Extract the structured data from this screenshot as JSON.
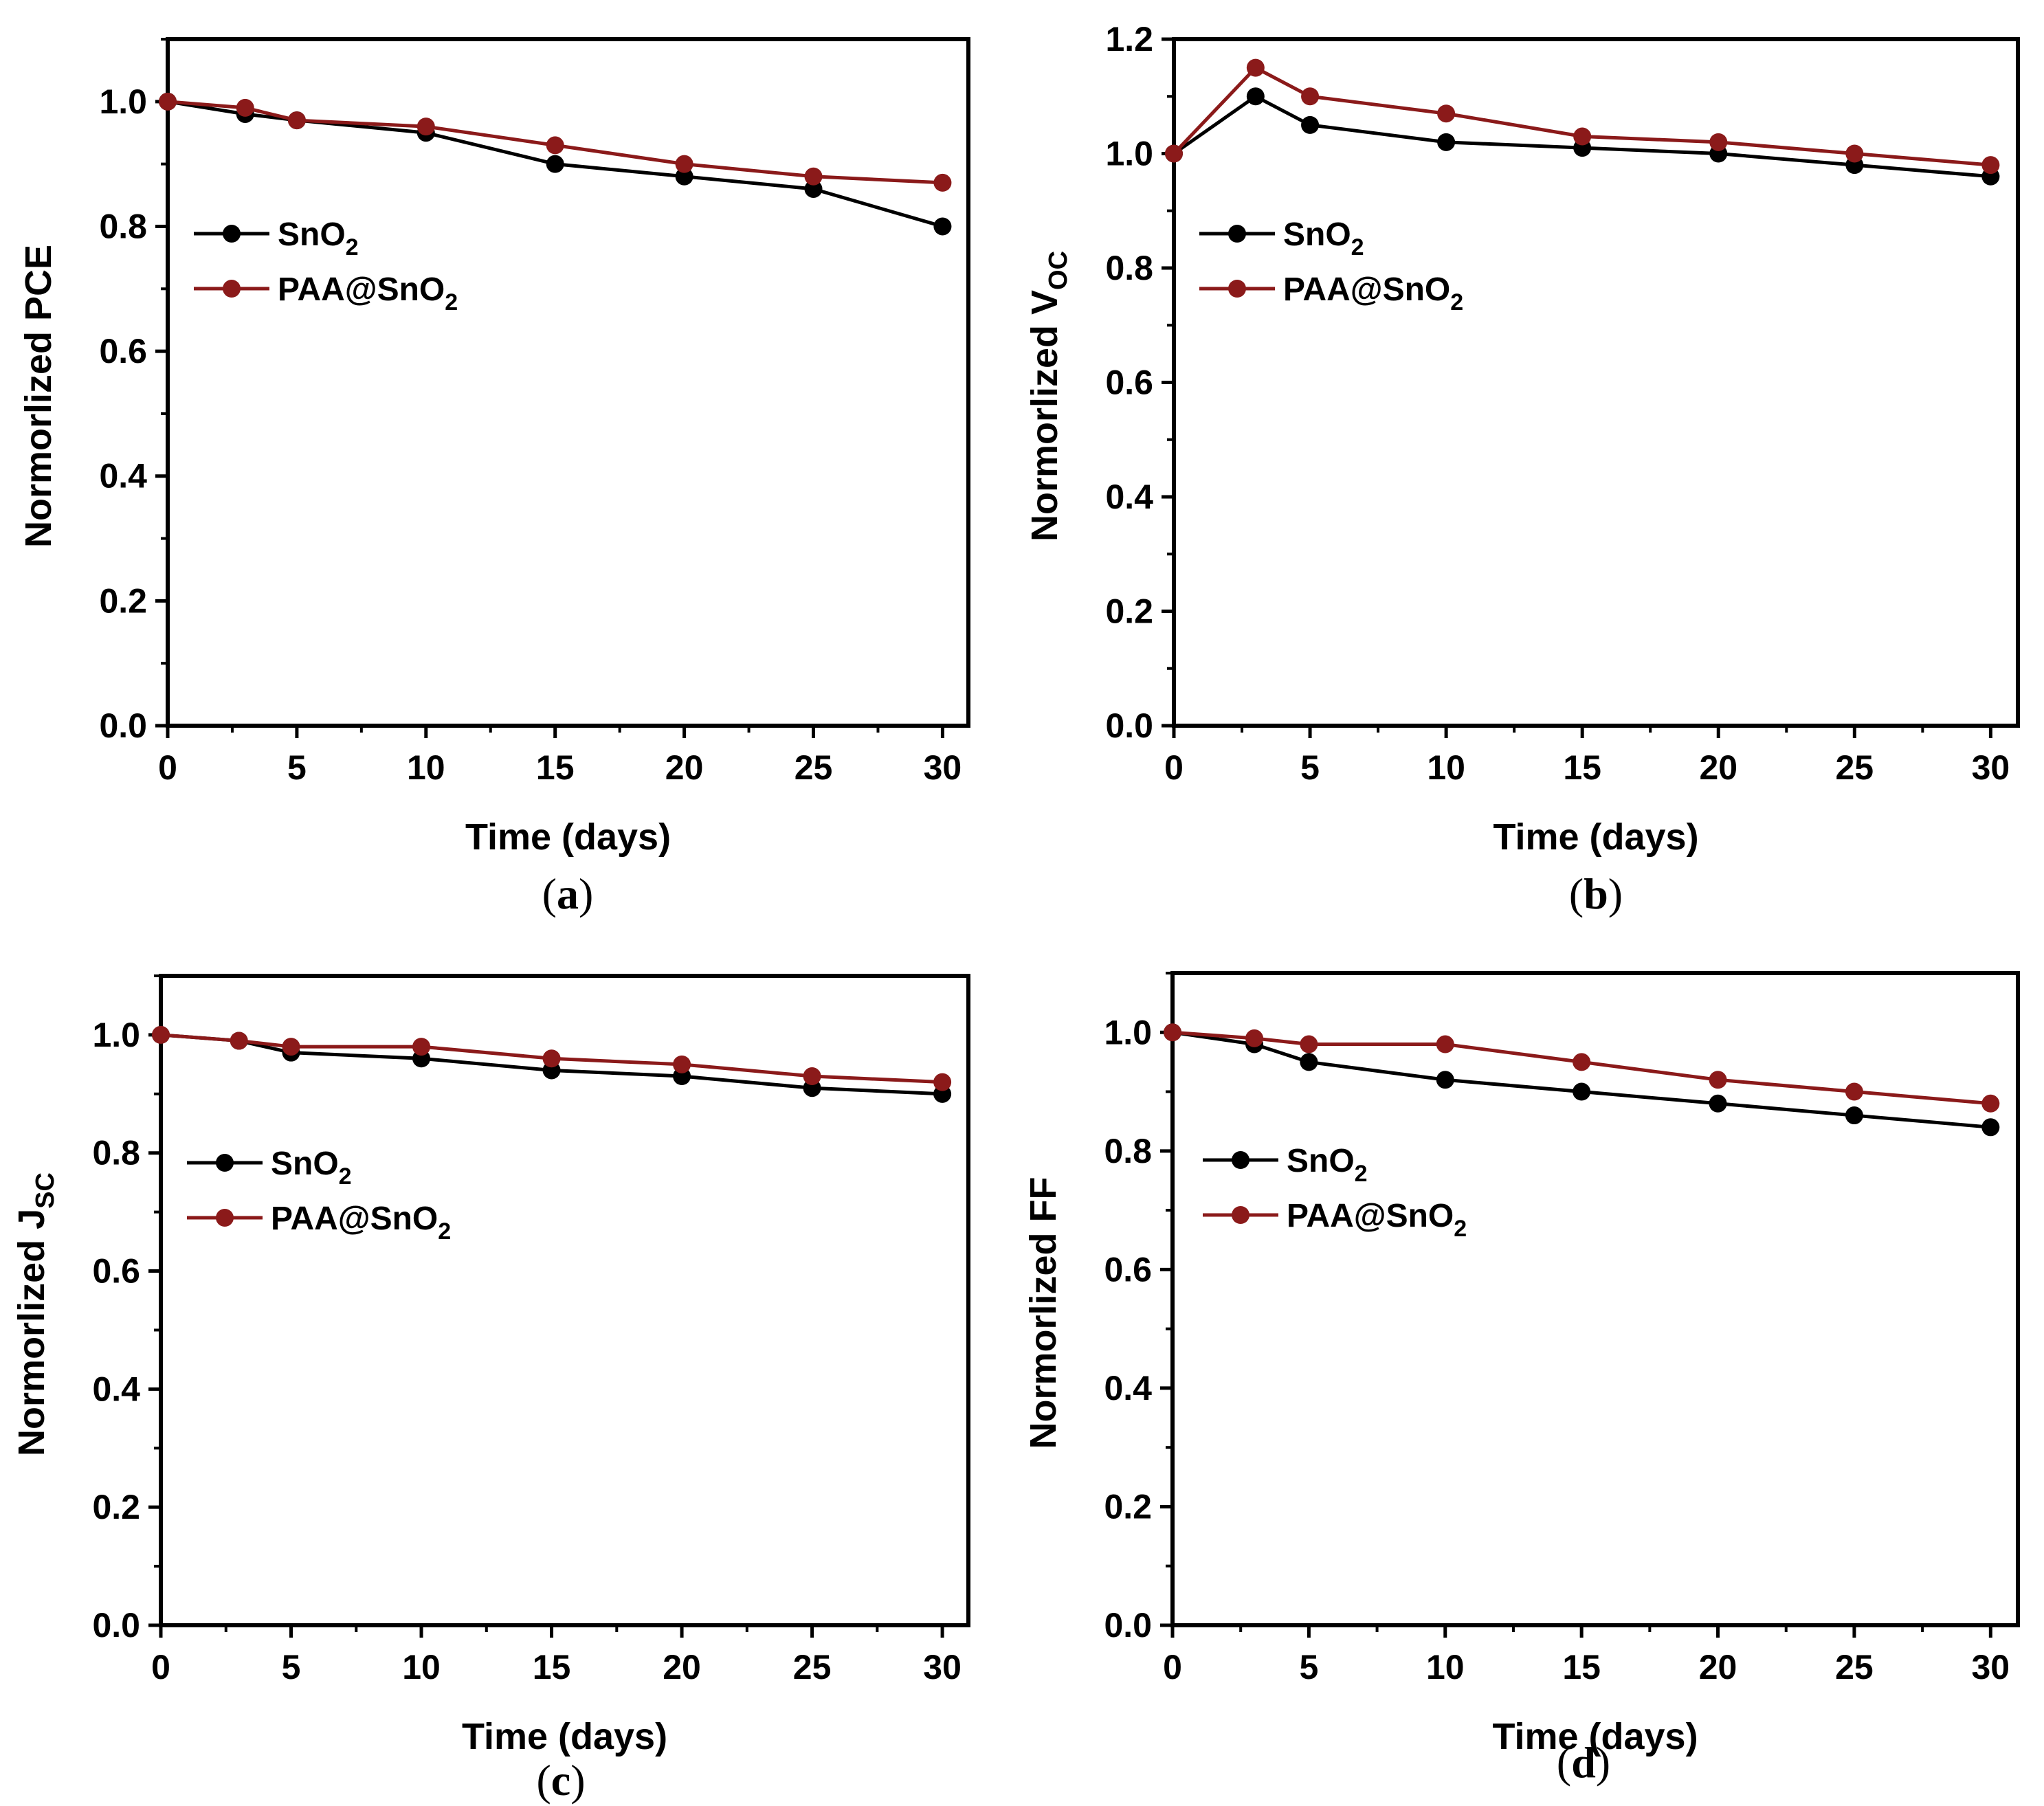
{
  "chart_data": [
    {
      "panel": "a",
      "type": "line",
      "xlabel": "Time (days)",
      "ylabel": {
        "base": "Normorlized PCE",
        "sub": ""
      },
      "xlim": [
        0,
        31
      ],
      "ylim": [
        0,
        1.1
      ],
      "xticks": [
        "0",
        "5",
        "10",
        "15",
        "20",
        "25",
        "30"
      ],
      "yticks": [
        "0.0",
        "0.2",
        "0.4",
        "0.6",
        "0.8",
        "1.0"
      ],
      "x": [
        0,
        3,
        5,
        10,
        15,
        20,
        25,
        30
      ],
      "series": [
        {
          "name": "SnO2",
          "label": {
            "base": "SnO",
            "sub": "2"
          },
          "color": "#000000",
          "values": [
            1.0,
            0.98,
            0.97,
            0.95,
            0.9,
            0.88,
            0.86,
            0.8
          ]
        },
        {
          "name": "PAA@SnO2",
          "label": {
            "base": "PAA@SnO",
            "sub": "2"
          },
          "color": "#8b1a1a",
          "values": [
            1.0,
            0.99,
            0.97,
            0.96,
            0.93,
            0.9,
            0.88,
            0.87
          ]
        }
      ],
      "caption": "a"
    },
    {
      "panel": "b",
      "type": "line",
      "xlabel": "Time (days)",
      "ylabel": {
        "base": "Normorlized V",
        "sub": "OC"
      },
      "xlim": [
        0,
        31
      ],
      "ylim": [
        0,
        1.2
      ],
      "xticks": [
        "0",
        "5",
        "10",
        "15",
        "20",
        "25",
        "30"
      ],
      "yticks": [
        "0.0",
        "0.2",
        "0.4",
        "0.6",
        "0.8",
        "1.0",
        "1.2"
      ],
      "x": [
        0,
        3,
        5,
        10,
        15,
        20,
        25,
        30
      ],
      "series": [
        {
          "name": "SnO2",
          "label": {
            "base": "SnO",
            "sub": "2"
          },
          "color": "#000000",
          "values": [
            1.0,
            1.1,
            1.05,
            1.02,
            1.01,
            1.0,
            0.98,
            0.96
          ]
        },
        {
          "name": "PAA@SnO2",
          "label": {
            "base": "PAA@SnO",
            "sub": "2"
          },
          "color": "#8b1a1a",
          "values": [
            1.0,
            1.15,
            1.1,
            1.07,
            1.03,
            1.02,
            1.0,
            0.98
          ]
        }
      ],
      "caption": "b"
    },
    {
      "panel": "c",
      "type": "line",
      "xlabel": "Time (days)",
      "ylabel": {
        "base": "Normorlized J",
        "sub": "SC"
      },
      "xlim": [
        0,
        31
      ],
      "ylim": [
        0,
        1.1
      ],
      "xticks": [
        "0",
        "5",
        "10",
        "15",
        "20",
        "25",
        "30"
      ],
      "yticks": [
        "0.0",
        "0.2",
        "0.4",
        "0.6",
        "0.8",
        "1.0"
      ],
      "x": [
        0,
        3,
        5,
        10,
        15,
        20,
        25,
        30
      ],
      "series": [
        {
          "name": "SnO2",
          "label": {
            "base": "SnO",
            "sub": "2"
          },
          "color": "#000000",
          "values": [
            1.0,
            0.99,
            0.97,
            0.96,
            0.94,
            0.93,
            0.91,
            0.9
          ]
        },
        {
          "name": "PAA@SnO2",
          "label": {
            "base": "PAA@SnO",
            "sub": "2"
          },
          "color": "#8b1a1a",
          "values": [
            1.0,
            0.99,
            0.98,
            0.98,
            0.96,
            0.95,
            0.93,
            0.92
          ]
        }
      ],
      "caption": "c"
    },
    {
      "panel": "d",
      "type": "line",
      "xlabel": "Time (days)",
      "ylabel": {
        "base": "Normorlized FF",
        "sub": ""
      },
      "xlim": [
        0,
        31
      ],
      "ylim": [
        0,
        1.1
      ],
      "xticks": [
        "0",
        "5",
        "10",
        "15",
        "20",
        "25",
        "30"
      ],
      "yticks": [
        "0.0",
        "0.2",
        "0.4",
        "0.6",
        "0.8",
        "1.0"
      ],
      "x": [
        0,
        3,
        5,
        10,
        15,
        20,
        25,
        30
      ],
      "series": [
        {
          "name": "SnO2",
          "label": {
            "base": "SnO",
            "sub": "2"
          },
          "color": "#000000",
          "values": [
            1.0,
            0.98,
            0.95,
            0.92,
            0.9,
            0.88,
            0.86,
            0.84
          ]
        },
        {
          "name": "PAA@SnO2",
          "label": {
            "base": "PAA@SnO",
            "sub": "2"
          },
          "color": "#8b1a1a",
          "values": [
            1.0,
            0.99,
            0.98,
            0.98,
            0.95,
            0.92,
            0.9,
            0.88
          ]
        }
      ],
      "caption": "d"
    }
  ]
}
